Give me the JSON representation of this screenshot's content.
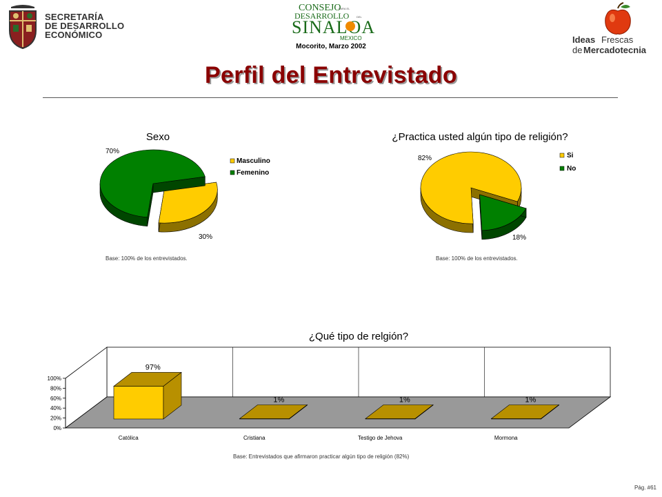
{
  "header": {
    "left_logo": {
      "line1": "SECRETARÍA",
      "line2": "DE DESARROLLO",
      "line3": "ECONÓMICO",
      "icon": "state-coat-of-arms-icon"
    },
    "center_logo": {
      "consejo": "CONSEJO",
      "para_el": "PARA EL",
      "desarrollo": "DESARROLLO",
      "del": "DEL",
      "sinaloa": "SINALOA",
      "mexico": "MEXICO",
      "location_date": "Mocorito, Marzo 2002"
    },
    "right_logo": {
      "ideas": "Ideas",
      "frescas": "Frescas",
      "de": "de",
      "mercadotecnia": "Mercadotecnia",
      "icon": "apple-icon"
    }
  },
  "page": {
    "title": "Perfil del Entrevistado",
    "page_number": "Pág. #61"
  },
  "colors": {
    "yellow": "#ffcc00",
    "yellow_dark": "#b89000",
    "green": "#008000",
    "green_dark": "#004d00",
    "floor": "#999999",
    "title": "#8a0000"
  },
  "notes": {
    "sexo_base": "Base:  100% de los entrevistados.",
    "religion_base": "Base:  100% de los entrevistados.",
    "tipo_base": "Base:   Entrevistados que afirmaron practicar algún tipo de religión (82%)"
  },
  "chart_data": [
    {
      "type": "pie",
      "title": "Sexo",
      "categories": [
        "Masculino",
        "Femenino"
      ],
      "values": [
        30,
        70
      ],
      "labels": [
        "30%",
        "70%"
      ],
      "colors": [
        "#ffcc00",
        "#008000"
      ],
      "legend": "right",
      "exploded": "Masculino"
    },
    {
      "type": "pie",
      "title": "¿Practica usted algún tipo de religión?",
      "categories": [
        "Si",
        "No"
      ],
      "values": [
        82,
        18
      ],
      "labels": [
        "82%",
        "18%"
      ],
      "colors": [
        "#ffcc00",
        "#008000"
      ],
      "legend": "right",
      "exploded": "No"
    },
    {
      "type": "bar",
      "title": "¿Qué tipo de relgión?",
      "categories": [
        "Católica",
        "Cristiana",
        "Testigo de Jehova",
        "Mormona"
      ],
      "values": [
        97,
        1,
        1,
        1
      ],
      "labels": [
        "97%",
        "1%",
        "1%",
        "1%"
      ],
      "ylim": [
        0,
        100
      ],
      "yticks": [
        "0%",
        "20%",
        "40%",
        "60%",
        "80%",
        "100%"
      ],
      "ytick_values": [
        0,
        20,
        40,
        60,
        80,
        100
      ],
      "color": "#ffcc00",
      "grid": true
    }
  ]
}
